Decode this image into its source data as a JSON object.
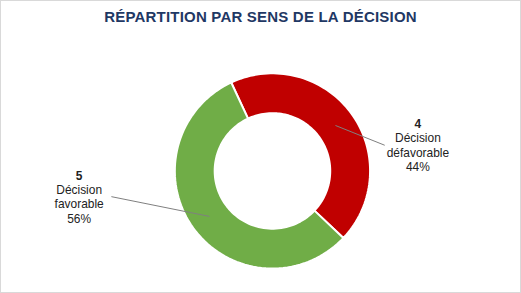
{
  "chart_data": {
    "type": "pie",
    "title": "RÉPARTITION PAR SENS DE LA DÉCISION",
    "categories": [
      "Décision défavorable",
      "Décision favorable"
    ],
    "values": [
      44,
      56
    ],
    "value_labels": [
      "44%",
      "56%"
    ],
    "counts": [
      4,
      5
    ],
    "colors": [
      "#c00000",
      "#70ad47"
    ],
    "data_labels": true
  }
}
